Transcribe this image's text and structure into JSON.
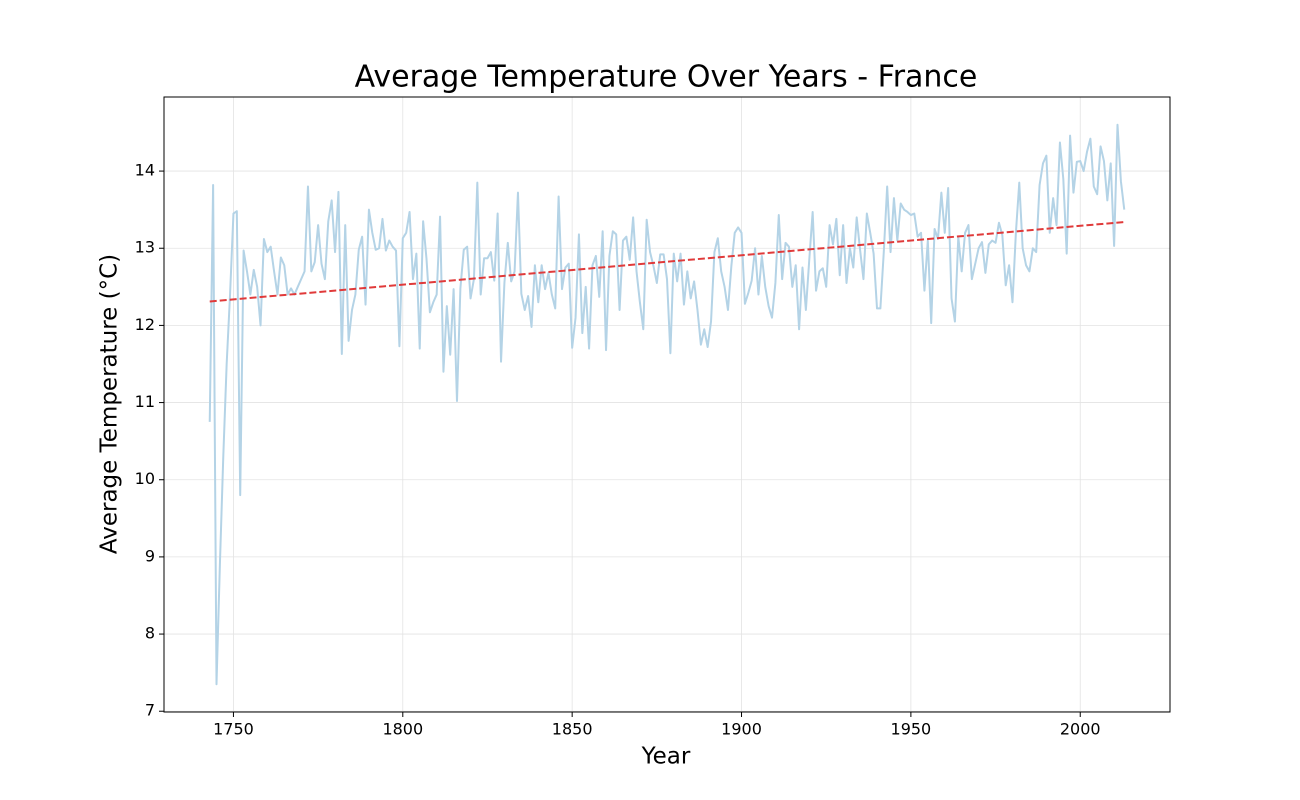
{
  "chart_data": {
    "type": "line",
    "title": "Average Temperature Over Years - France",
    "x_label": "Year",
    "y_label": "Average Temperature (°C)",
    "xlim": [
      1729.5,
      2026.5
    ],
    "ylim": [
      6.99,
      14.96
    ],
    "xticks": [
      1750,
      1800,
      1850,
      1900,
      1950,
      2000
    ],
    "yticks": [
      7,
      8,
      9,
      10,
      11,
      12,
      13,
      14
    ],
    "grid": true,
    "series": [
      {
        "color": "#b4d3e6",
        "style": "solid",
        "x": [
          1743,
          1744,
          1745,
          1746,
          1747,
          1748,
          1749,
          1750,
          1751,
          1752,
          1753,
          1754,
          1755,
          1756,
          1757,
          1758,
          1759,
          1760,
          1761,
          1762,
          1763,
          1764,
          1765,
          1766,
          1767,
          1768,
          1769,
          1770,
          1771,
          1772,
          1773,
          1774,
          1775,
          1776,
          1777,
          1778,
          1779,
          1780,
          1781,
          1782,
          1783,
          1784,
          1785,
          1786,
          1787,
          1788,
          1789,
          1790,
          1791,
          1792,
          1793,
          1794,
          1795,
          1796,
          1797,
          1798,
          1799,
          1800,
          1801,
          1802,
          1803,
          1804,
          1805,
          1806,
          1807,
          1808,
          1809,
          1810,
          1811,
          1812,
          1813,
          1814,
          1815,
          1816,
          1817,
          1818,
          1819,
          1820,
          1821,
          1822,
          1823,
          1824,
          1825,
          1826,
          1827,
          1828,
          1829,
          1830,
          1831,
          1832,
          1833,
          1834,
          1835,
          1836,
          1837,
          1838,
          1839,
          1840,
          1841,
          1842,
          1843,
          1844,
          1845,
          1846,
          1847,
          1848,
          1849,
          1850,
          1851,
          1852,
          1853,
          1854,
          1855,
          1856,
          1857,
          1858,
          1859,
          1860,
          1861,
          1862,
          1863,
          1864,
          1865,
          1866,
          1867,
          1868,
          1869,
          1870,
          1871,
          1872,
          1873,
          1874,
          1875,
          1876,
          1877,
          1878,
          1879,
          1880,
          1881,
          1882,
          1883,
          1884,
          1885,
          1886,
          1887,
          1888,
          1889,
          1890,
          1891,
          1892,
          1893,
          1894,
          1895,
          1896,
          1897,
          1898,
          1899,
          1900,
          1901,
          1902,
          1903,
          1904,
          1905,
          1906,
          1907,
          1908,
          1909,
          1910,
          1911,
          1912,
          1913,
          1914,
          1915,
          1916,
          1917,
          1918,
          1919,
          1920,
          1921,
          1922,
          1923,
          1924,
          1925,
          1926,
          1927,
          1928,
          1929,
          1930,
          1931,
          1932,
          1933,
          1934,
          1935,
          1936,
          1937,
          1938,
          1939,
          1940,
          1941,
          1942,
          1943,
          1944,
          1945,
          1946,
          1947,
          1948,
          1949,
          1950,
          1951,
          1952,
          1953,
          1954,
          1955,
          1956,
          1957,
          1958,
          1959,
          1960,
          1961,
          1962,
          1963,
          1964,
          1965,
          1966,
          1967,
          1968,
          1969,
          1970,
          1971,
          1972,
          1973,
          1974,
          1975,
          1976,
          1977,
          1978,
          1979,
          1980,
          1981,
          1982,
          1983,
          1984,
          1985,
          1986,
          1987,
          1988,
          1989,
          1990,
          1991,
          1992,
          1993,
          1994,
          1995,
          1996,
          1997,
          1998,
          1999,
          2000,
          2001,
          2002,
          2003,
          2004,
          2005,
          2006,
          2007,
          2008,
          2009,
          2010,
          2011,
          2012,
          2013
        ],
        "values": [
          10.75,
          13.82,
          7.35,
          8.9,
          10.3,
          11.5,
          12.4,
          13.45,
          13.48,
          9.8,
          12.97,
          12.7,
          12.4,
          12.72,
          12.5,
          12.0,
          13.12,
          12.95,
          13.02,
          12.7,
          12.4,
          12.88,
          12.78,
          12.4,
          12.48,
          12.4,
          12.5,
          12.6,
          12.7,
          13.8,
          12.7,
          12.82,
          13.3,
          12.8,
          12.6,
          13.35,
          13.62,
          12.95,
          13.73,
          11.63,
          13.3,
          11.8,
          12.2,
          12.4,
          12.98,
          13.15,
          12.27,
          13.5,
          13.2,
          12.98,
          13.0,
          13.38,
          12.97,
          13.1,
          13.02,
          12.97,
          11.73,
          13.13,
          13.2,
          13.47,
          12.6,
          12.93,
          11.7,
          13.35,
          12.86,
          12.17,
          12.3,
          12.4,
          13.41,
          11.4,
          12.25,
          11.62,
          12.47,
          11.02,
          12.48,
          12.98,
          13.02,
          12.35,
          12.6,
          13.85,
          12.4,
          12.87,
          12.87,
          12.95,
          12.58,
          13.45,
          11.53,
          12.55,
          13.07,
          12.57,
          12.7,
          13.72,
          12.41,
          12.2,
          12.38,
          11.98,
          12.78,
          12.3,
          12.78,
          12.47,
          12.68,
          12.4,
          12.22,
          13.67,
          12.47,
          12.75,
          12.8,
          11.71,
          12.1,
          13.18,
          11.9,
          12.5,
          11.7,
          12.78,
          12.9,
          12.37,
          13.22,
          11.68,
          12.9,
          13.22,
          13.18,
          12.2,
          13.1,
          13.15,
          12.85,
          13.4,
          12.7,
          12.3,
          11.95,
          13.37,
          12.95,
          12.77,
          12.55,
          12.92,
          12.92,
          12.6,
          11.64,
          12.93,
          12.57,
          12.93,
          12.27,
          12.7,
          12.35,
          12.57,
          12.2,
          11.75,
          11.95,
          11.72,
          12.05,
          12.95,
          13.13,
          12.7,
          12.5,
          12.2,
          12.77,
          13.2,
          13.27,
          13.2,
          12.28,
          12.42,
          12.58,
          13.0,
          12.4,
          12.9,
          12.5,
          12.25,
          12.1,
          12.55,
          13.43,
          12.6,
          13.07,
          13.02,
          12.5,
          12.78,
          11.95,
          12.75,
          12.2,
          12.85,
          13.47,
          12.45,
          12.7,
          12.74,
          12.5,
          13.3,
          13.05,
          13.38,
          12.65,
          13.3,
          12.55,
          13.0,
          12.75,
          13.4,
          12.98,
          12.6,
          13.45,
          13.2,
          12.93,
          12.22,
          12.22,
          12.95,
          13.8,
          12.95,
          13.65,
          13.1,
          13.58,
          13.5,
          13.47,
          13.43,
          13.45,
          13.15,
          13.2,
          12.45,
          13.1,
          12.03,
          13.25,
          13.12,
          13.72,
          13.2,
          13.78,
          12.35,
          12.05,
          13.15,
          12.7,
          13.2,
          13.3,
          12.6,
          12.8,
          13.0,
          13.08,
          12.68,
          13.05,
          13.1,
          13.07,
          13.33,
          13.17,
          12.52,
          12.78,
          12.3,
          13.2,
          13.85,
          13.0,
          12.78,
          12.7,
          13.0,
          12.95,
          13.82,
          14.1,
          14.2,
          13.2,
          13.65,
          13.3,
          14.37,
          13.9,
          12.93,
          14.46,
          13.72,
          14.12,
          14.13,
          14.0,
          14.25,
          14.42,
          13.8,
          13.7,
          14.32,
          14.13,
          13.62,
          14.1,
          13.03,
          14.6,
          13.87,
          13.5
        ]
      },
      {
        "color": "#e03a3a",
        "style": "dashed",
        "x": [
          1743,
          2013
        ],
        "values": [
          12.31,
          13.34
        ]
      }
    ]
  }
}
